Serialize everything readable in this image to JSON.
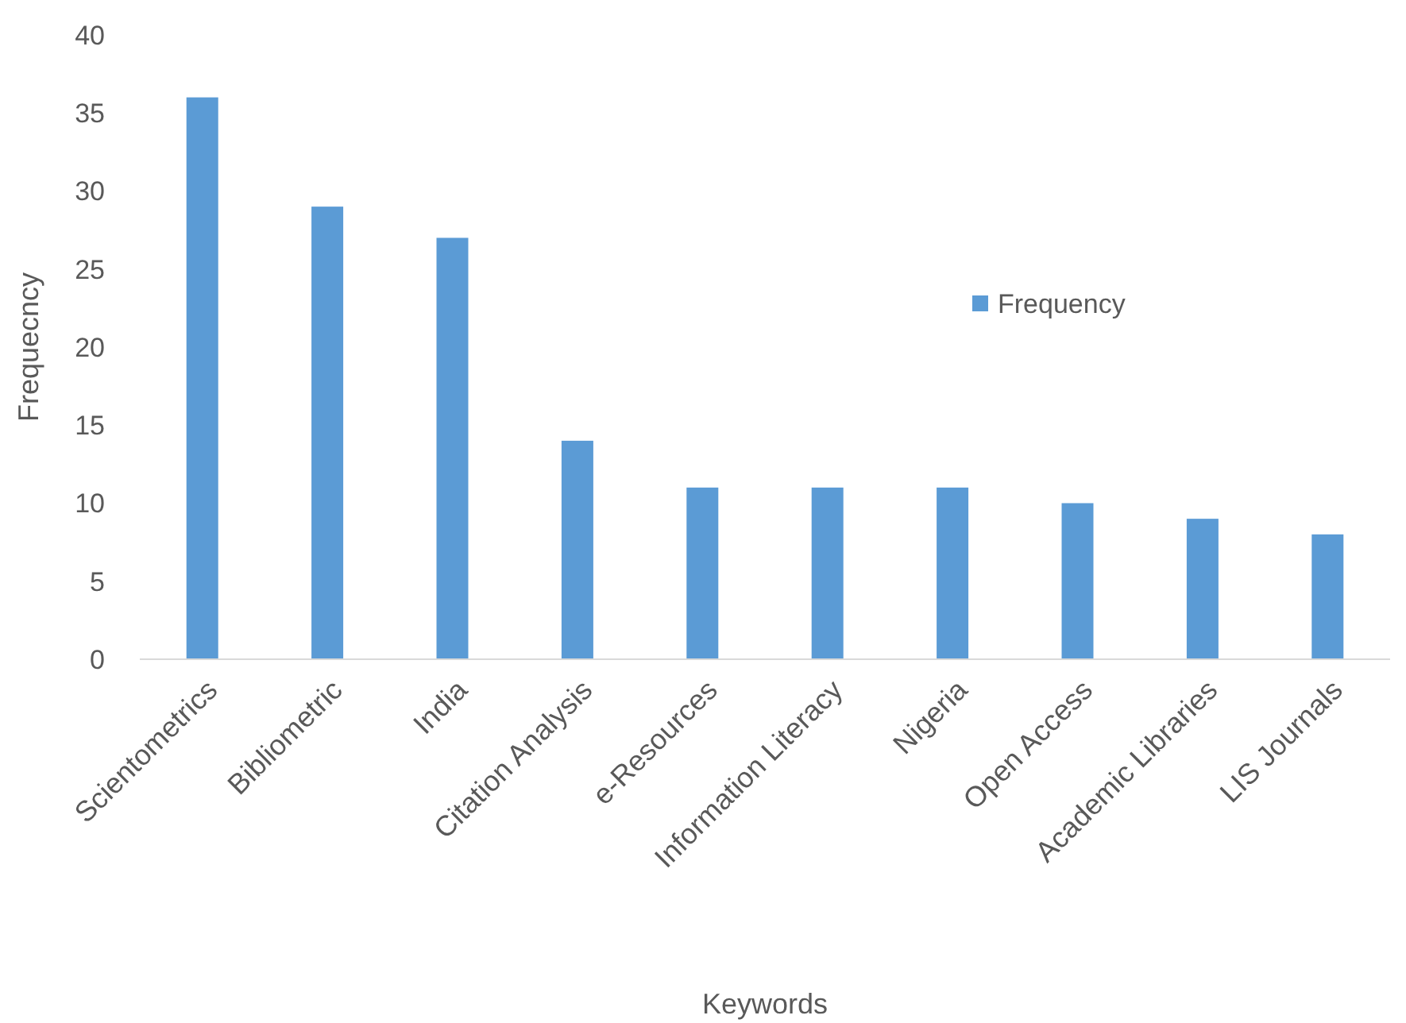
{
  "chart_data": {
    "type": "bar",
    "xlabel": "Keywords",
    "ylabel": "Frequecncy",
    "categories": [
      "Scientometrics",
      "Bibliometric",
      "India",
      "Citation Analysis",
      "e-Resources",
      "Information Literacy",
      "Nigeria",
      "Open Access",
      "Academic Libraries",
      "LIS Journals"
    ],
    "series": [
      {
        "name": "Frequency",
        "color": "#5b9bd5",
        "values": [
          36,
          29,
          27,
          14,
          11,
          11,
          11,
          10,
          9,
          8
        ]
      }
    ],
    "ylim": [
      0,
      40
    ],
    "yticks": [
      0,
      5,
      10,
      15,
      20,
      25,
      30,
      35,
      40
    ],
    "legend": "right"
  }
}
